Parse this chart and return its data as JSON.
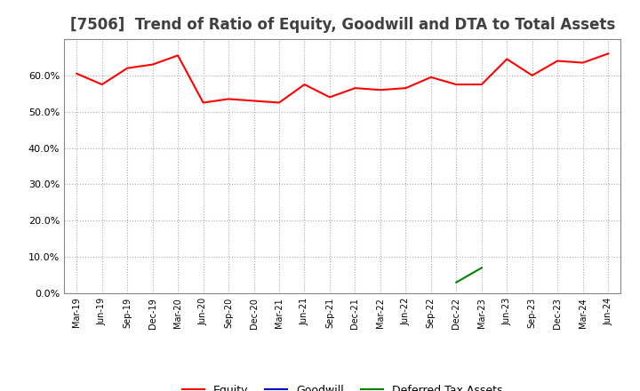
{
  "title": "[7506]  Trend of Ratio of Equity, Goodwill and DTA to Total Assets",
  "labels": [
    "Mar-19",
    "Jun-19",
    "Sep-19",
    "Dec-19",
    "Mar-20",
    "Jun-20",
    "Sep-20",
    "Dec-20",
    "Mar-21",
    "Jun-21",
    "Sep-21",
    "Dec-21",
    "Mar-22",
    "Jun-22",
    "Sep-22",
    "Dec-22",
    "Mar-23",
    "Jun-23",
    "Sep-23",
    "Dec-23",
    "Mar-24",
    "Jun-24"
  ],
  "equity": [
    60.5,
    57.5,
    62.0,
    63.0,
    65.5,
    52.5,
    53.5,
    53.0,
    52.5,
    57.5,
    54.0,
    56.5,
    56.0,
    56.5,
    59.5,
    57.5,
    57.5,
    64.5,
    60.0,
    64.0,
    63.5,
    66.0
  ],
  "goodwill": [
    null,
    null,
    null,
    null,
    null,
    null,
    null,
    null,
    null,
    null,
    null,
    null,
    null,
    null,
    null,
    null,
    null,
    null,
    null,
    null,
    null,
    null
  ],
  "dta": [
    null,
    null,
    null,
    null,
    null,
    null,
    null,
    null,
    null,
    null,
    null,
    null,
    null,
    null,
    null,
    3.0,
    7.0,
    null,
    null,
    null,
    null,
    null
  ],
  "equity_color": "#FF0000",
  "goodwill_color": "#0000CC",
  "dta_color": "#008000",
  "ylim": [
    0,
    70
  ],
  "yticks": [
    0.0,
    10.0,
    20.0,
    30.0,
    40.0,
    50.0,
    60.0
  ],
  "background_color": "#FFFFFF",
  "plot_bg_color": "#FFFFFF",
  "title_fontsize": 12,
  "title_color": "#404040",
  "legend_labels": [
    "Equity",
    "Goodwill",
    "Deferred Tax Assets"
  ],
  "grid_color": "#AAAAAA",
  "tick_fontsize": 8,
  "xlabel_fontsize": 7
}
